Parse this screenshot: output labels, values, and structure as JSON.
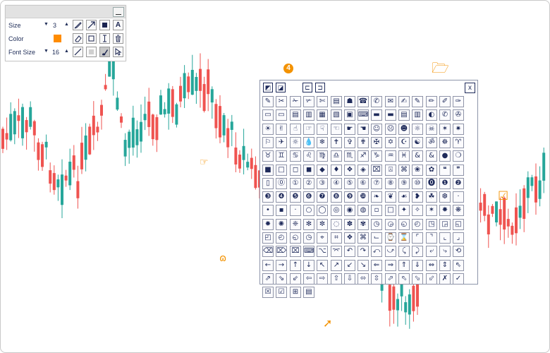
{
  "toolbar": {
    "size_label": "Size",
    "size_value": "3",
    "color_label": "Color",
    "color_value": "#ff8c00",
    "fontsize_label": "Font Size",
    "fontsize_value": "16",
    "tools": [
      "pencil-icon",
      "arrow-icon",
      "filled-square-icon",
      "text-tool-icon",
      "eraser-icon",
      "rectangle-icon",
      "text-cursor-icon",
      "trash-icon",
      "line-icon",
      "shaded-square-icon",
      "brush-icon",
      "pointer-icon"
    ],
    "text_tool_label": "A"
  },
  "palette": {
    "close_label": "x",
    "top_buttons": [
      "collapse-icon",
      "expand-icon",
      "bracket-left-icon",
      "bracket-right-icon"
    ],
    "glyphs": [
      "✎",
      "✂",
      "✁",
      "✃",
      "✄",
      "▤",
      "☗",
      "☎",
      "✆",
      "✉",
      "✍",
      "✎",
      "✏",
      "✐",
      "✑",
      "▭",
      "▭",
      "▤",
      "▥",
      "▦",
      "▧",
      "▣",
      "⌨",
      "▬",
      "▬",
      "▤",
      "▥",
      "◐",
      "✆",
      "✇",
      "☀",
      "✌",
      "☝",
      "☞",
      "☟",
      "☜",
      "☛",
      "☚",
      "☺",
      "☹",
      "☻",
      "☼",
      "☠",
      "✶",
      "✷",
      "⚐",
      "✈",
      "☼",
      "💧",
      "❄",
      "✝",
      "✞",
      "✟",
      "✠",
      "✡",
      "☪",
      "☯",
      "ॐ",
      "☸",
      "♈",
      "♉",
      "♊",
      "♋",
      "♌",
      "♍",
      "♎",
      "♏",
      "♐",
      "♑",
      "♒",
      "♓",
      "&",
      "&",
      "●",
      "❍",
      "■",
      "□",
      "◻",
      "◼",
      "◆",
      "♦",
      "❖",
      "◈",
      "⌧",
      "⍓",
      "⌘",
      "❀",
      "✿",
      "❝",
      "❞",
      "▯",
      "⓪",
      "①",
      "②",
      "③",
      "④",
      "⑤",
      "⑥",
      "⑦",
      "⑧",
      "⑨",
      "⑩",
      "⓿",
      "❶",
      "❷",
      "❸",
      "❹",
      "❺",
      "❻",
      "❼",
      "❽",
      "❾",
      "❿",
      "❧",
      "❦",
      "☙",
      "❥",
      "☘",
      "❆",
      "·",
      "•",
      "▪",
      "·",
      "○",
      "◯",
      "◎",
      "◉",
      "◍",
      "▫",
      "□",
      "✦",
      "✧",
      "✶",
      "✸",
      "❋",
      "✹",
      "✺",
      "❈",
      "✻",
      "✼",
      "◌",
      "✽",
      "✾",
      "◷",
      "◶",
      "◵",
      "◴",
      "◳",
      "◲",
      "◱",
      "◰",
      "◴",
      "◵",
      "◷",
      "⌖",
      "⌗",
      "❖",
      "⌘",
      "⌙",
      "⌚",
      "⌛",
      "⌜",
      "⌝",
      "⌞",
      "⌟",
      "⌫",
      "⌦",
      "⌧",
      "⌨",
      "⌥",
      "⌤",
      "↶",
      "↷",
      "⤺",
      "⤻",
      "⤹",
      "⤸",
      "⤶",
      "⤷",
      "⟲",
      "←",
      "→",
      "↑",
      "↓",
      "↖",
      "↗",
      "↙",
      "↘",
      "⇐",
      "⇒",
      "⇑",
      "⇓",
      "⇔",
      "⇕",
      "⇖",
      "⇗",
      "⇘",
      "⇙",
      "⇦",
      "⇨",
      "⇧",
      "⇩",
      "⬄",
      "⇳",
      "⬀",
      "⬁",
      "⬂",
      "⬃",
      "✗",
      "✓",
      "☒",
      "☑",
      "⊞",
      "▤"
    ]
  },
  "markers": {
    "number": "4",
    "folder": "open-folder-icon",
    "hand": "pointing-hand-icon",
    "sym": "ornament-icon",
    "check": "checkbox-icon",
    "arrow": "up-right-arrow-icon"
  },
  "colors": {
    "up_candle": "#26a69a",
    "down_candle": "#ef5350",
    "accent": "#f39200",
    "palette_ink": "#1e2a5a"
  }
}
